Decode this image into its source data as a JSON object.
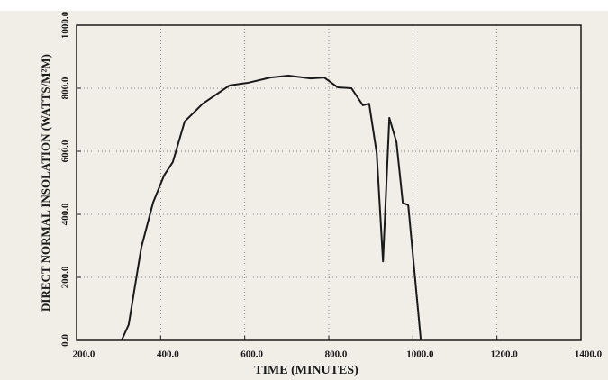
{
  "chart_data": {
    "type": "line",
    "xlabel": "TIME (MINUTES)",
    "ylabel": "DIRECT NORMAL INSOLATION (WATTS/M²M)",
    "x": [
      307,
      324,
      354,
      382,
      408,
      429,
      457,
      500,
      564,
      607,
      661,
      704,
      757,
      789,
      821,
      854,
      881,
      896,
      914,
      929,
      944,
      961,
      976,
      989,
      1019
    ],
    "series": [
      {
        "name": "Direct normal insolation",
        "color": "#1a1a1a",
        "values": [
          0,
          50,
          295,
          437,
          523,
          566,
          694,
          751,
          809,
          817,
          834,
          840,
          831,
          834,
          803,
          800,
          746,
          751,
          594,
          251,
          706,
          629,
          437,
          429,
          0
        ]
      }
    ],
    "xlim": [
      200,
      1400
    ],
    "xticks": [
      {
        "value": 200,
        "label": "200.0"
      },
      {
        "value": 400,
        "label": "400.0"
      },
      {
        "value": 600,
        "label": "600.0"
      },
      {
        "value": 800,
        "label": "800.0"
      },
      {
        "value": 1000,
        "label": "1000.0"
      },
      {
        "value": 1200,
        "label": "1200.0"
      },
      {
        "value": 1400,
        "label": "1400.0"
      }
    ],
    "ylim": [
      0,
      1000
    ],
    "yticks": [
      {
        "value": 0,
        "label": "0.0"
      },
      {
        "value": 200,
        "label": "200.0"
      },
      {
        "value": 400,
        "label": "400.0"
      },
      {
        "value": 600,
        "label": "600.0"
      },
      {
        "value": 800,
        "label": "800.0"
      },
      {
        "value": 1000,
        "label": "1000.0"
      }
    ],
    "grid": true
  }
}
